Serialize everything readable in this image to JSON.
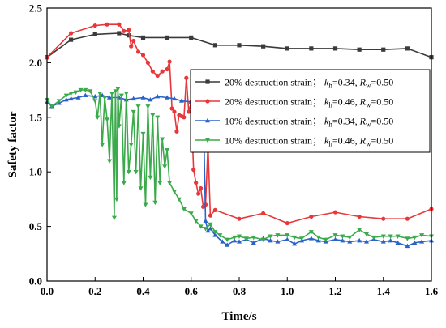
{
  "chart_data": {
    "type": "line",
    "xlabel": "Time/s",
    "ylabel": "Safety factor",
    "xlim": [
      0.0,
      1.6
    ],
    "ylim": [
      0.0,
      2.5
    ],
    "xticks": [
      "0.0",
      "0.2",
      "0.4",
      "0.6",
      "0.8",
      "1.0",
      "1.2",
      "1.4",
      "1.6"
    ],
    "yticks": [
      "0.0",
      "0.5",
      "1.0",
      "1.5",
      "2.0",
      "2.5"
    ],
    "grid": false,
    "legend_position": "right",
    "series": [
      {
        "name": "20% destruction strain； kh=0.34, Rw=0.50",
        "legend": {
          "prefix": "20% destruction strain； ",
          "k_sub": "h",
          "k_val": "=0.34, ",
          "r_sub": "w",
          "r_val": "=0.50"
        },
        "color": "#3a3a3a",
        "marker": "square",
        "x": [
          0.0,
          0.1,
          0.2,
          0.3,
          0.34,
          0.4,
          0.5,
          0.6,
          0.7,
          0.8,
          0.9,
          1.0,
          1.1,
          1.2,
          1.3,
          1.4,
          1.5,
          1.6
        ],
        "y": [
          2.05,
          2.21,
          2.26,
          2.27,
          2.25,
          2.23,
          2.23,
          2.23,
          2.16,
          2.16,
          2.15,
          2.13,
          2.13,
          2.13,
          2.12,
          2.12,
          2.13,
          2.05
        ]
      },
      {
        "name": "20% destruction strain； kh=0.46, Rw=0.50",
        "legend": {
          "prefix": "20% destruction strain； ",
          "k_sub": "h",
          "k_val": "=0.46, ",
          "r_sub": "w",
          "r_val": "=0.50"
        },
        "color": "#e8363a",
        "marker": "circle",
        "x": [
          0.0,
          0.1,
          0.2,
          0.25,
          0.3,
          0.32,
          0.34,
          0.35,
          0.36,
          0.38,
          0.4,
          0.42,
          0.44,
          0.46,
          0.48,
          0.5,
          0.51,
          0.52,
          0.53,
          0.54,
          0.55,
          0.56,
          0.57,
          0.58,
          0.59,
          0.6,
          0.61,
          0.62,
          0.63,
          0.64,
          0.65,
          0.66,
          0.67,
          0.68,
          0.7,
          0.8,
          0.9,
          1.0,
          1.1,
          1.2,
          1.3,
          1.4,
          1.5,
          1.6
        ],
        "y": [
          2.05,
          2.27,
          2.34,
          2.35,
          2.35,
          2.29,
          2.3,
          2.15,
          2.2,
          2.1,
          2.07,
          2.0,
          1.92,
          1.88,
          1.92,
          1.94,
          2.01,
          1.58,
          1.55,
          1.37,
          1.52,
          1.51,
          1.5,
          1.86,
          1.55,
          1.64,
          1.02,
          0.9,
          0.8,
          0.85,
          0.68,
          0.7,
          1.25,
          0.6,
          0.65,
          0.57,
          0.62,
          0.53,
          0.59,
          0.63,
          0.59,
          0.57,
          0.57,
          0.66
        ]
      },
      {
        "name": "10% destruction strain； kh=0.34, Rw=0.50",
        "legend": {
          "prefix": "10% destruction strain； ",
          "k_sub": "h",
          "k_val": "=0.34, ",
          "r_sub": "w",
          "r_val": "=0.50"
        },
        "color": "#2a63c8",
        "marker": "triangle-up",
        "x": [
          0.0,
          0.02,
          0.05,
          0.08,
          0.1,
          0.13,
          0.16,
          0.2,
          0.23,
          0.26,
          0.3,
          0.33,
          0.36,
          0.4,
          0.43,
          0.46,
          0.5,
          0.53,
          0.56,
          0.6,
          0.63,
          0.65,
          0.66,
          0.67,
          0.68,
          0.7,
          0.73,
          0.75,
          0.78,
          0.8,
          0.83,
          0.86,
          0.9,
          0.93,
          0.96,
          1.0,
          1.03,
          1.06,
          1.1,
          1.13,
          1.16,
          1.2,
          1.23,
          1.26,
          1.3,
          1.33,
          1.36,
          1.4,
          1.43,
          1.46,
          1.5,
          1.53,
          1.56,
          1.6
        ],
        "y": [
          1.64,
          1.6,
          1.63,
          1.66,
          1.67,
          1.68,
          1.7,
          1.69,
          1.7,
          1.68,
          1.68,
          1.66,
          1.67,
          1.68,
          1.66,
          1.69,
          1.68,
          1.67,
          1.65,
          1.64,
          1.63,
          1.64,
          0.55,
          0.46,
          0.48,
          0.42,
          0.36,
          0.33,
          0.37,
          0.36,
          0.38,
          0.35,
          0.39,
          0.37,
          0.36,
          0.38,
          0.34,
          0.37,
          0.39,
          0.37,
          0.36,
          0.38,
          0.37,
          0.36,
          0.37,
          0.36,
          0.38,
          0.36,
          0.37,
          0.35,
          0.32,
          0.35,
          0.36,
          0.37
        ]
      },
      {
        "name": "10% destruction strain； kh=0.46, Rw=0.50",
        "legend": {
          "prefix": "10% destruction strain； ",
          "k_sub": "h",
          "k_val": "=0.46, ",
          "r_sub": "w",
          "r_val": "=0.50"
        },
        "color": "#3aaa4a",
        "marker": "triangle-down",
        "x": [
          0.0,
          0.02,
          0.05,
          0.08,
          0.1,
          0.12,
          0.14,
          0.16,
          0.18,
          0.2,
          0.21,
          0.22,
          0.23,
          0.24,
          0.25,
          0.26,
          0.27,
          0.28,
          0.285,
          0.29,
          0.295,
          0.3,
          0.31,
          0.32,
          0.33,
          0.34,
          0.35,
          0.36,
          0.37,
          0.38,
          0.39,
          0.4,
          0.41,
          0.42,
          0.43,
          0.44,
          0.45,
          0.46,
          0.47,
          0.48,
          0.49,
          0.5,
          0.51,
          0.53,
          0.55,
          0.57,
          0.6,
          0.62,
          0.64,
          0.66,
          0.68,
          0.7,
          0.72,
          0.75,
          0.78,
          0.8,
          0.83,
          0.86,
          0.9,
          0.93,
          0.96,
          1.0,
          1.03,
          1.06,
          1.1,
          1.13,
          1.16,
          1.2,
          1.23,
          1.26,
          1.3,
          1.33,
          1.36,
          1.4,
          1.43,
          1.46,
          1.5,
          1.53,
          1.56,
          1.6
        ],
        "y": [
          1.66,
          1.6,
          1.65,
          1.7,
          1.72,
          1.73,
          1.75,
          1.75,
          1.74,
          1.65,
          1.5,
          1.72,
          1.25,
          1.68,
          1.48,
          1.1,
          1.72,
          0.58,
          1.74,
          0.75,
          1.76,
          1.42,
          1.7,
          0.9,
          1.72,
          1.0,
          1.25,
          1.55,
          1.0,
          1.6,
          0.85,
          1.35,
          0.7,
          1.6,
          0.95,
          1.52,
          0.72,
          1.5,
          0.9,
          1.3,
          1.05,
          1.2,
          0.9,
          0.82,
          0.75,
          0.66,
          0.62,
          0.55,
          0.5,
          0.48,
          0.52,
          0.45,
          0.42,
          0.38,
          0.4,
          0.41,
          0.39,
          0.4,
          0.38,
          0.41,
          0.42,
          0.42,
          0.4,
          0.39,
          0.45,
          0.4,
          0.38,
          0.42,
          0.41,
          0.4,
          0.47,
          0.43,
          0.4,
          0.41,
          0.41,
          0.41,
          0.39,
          0.4,
          0.42,
          0.41
        ]
      }
    ]
  }
}
